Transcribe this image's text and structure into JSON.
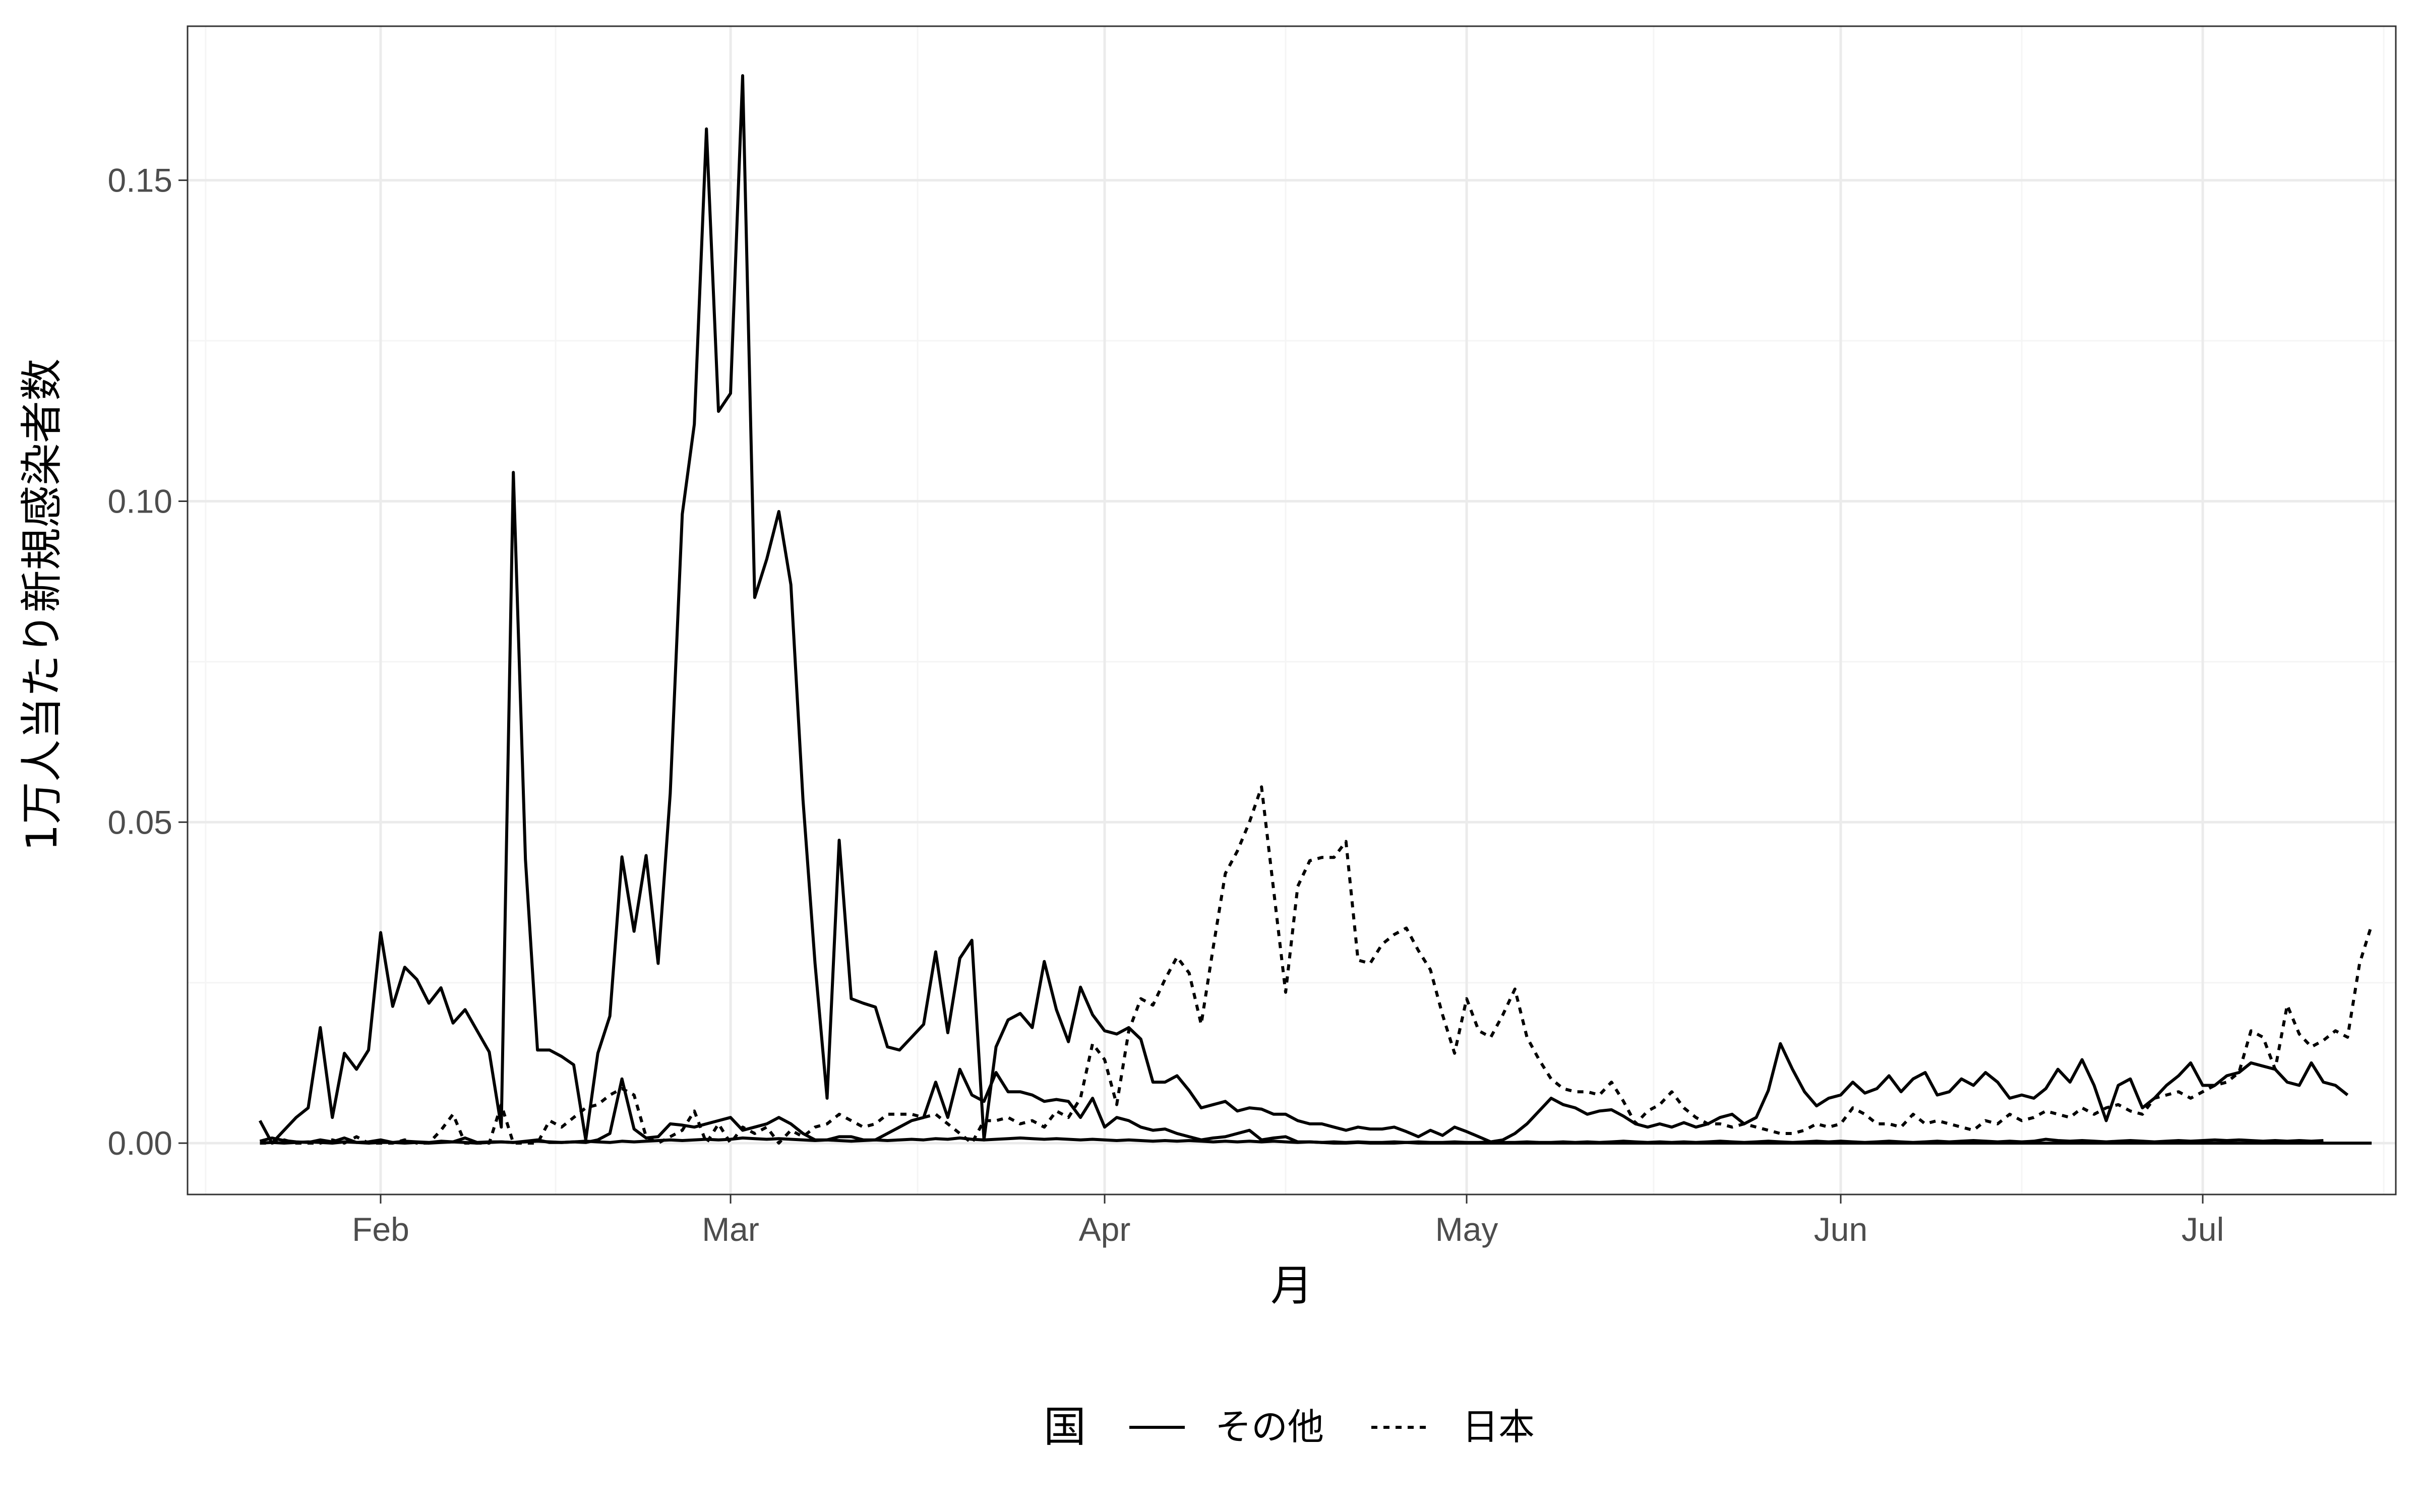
{
  "chart_data": {
    "type": "line",
    "title": "",
    "xlabel": "月",
    "ylabel": "1万人当たり新規感染者数",
    "x_ticks": [
      {
        "date": "2020-02-01",
        "label": "Feb"
      },
      {
        "date": "2020-03-01",
        "label": "Mar"
      },
      {
        "date": "2020-04-01",
        "label": "Apr"
      },
      {
        "date": "2020-05-01",
        "label": "May"
      },
      {
        "date": "2020-06-01",
        "label": "Jun"
      },
      {
        "date": "2020-07-01",
        "label": "Jul"
      }
    ],
    "xlim": [
      "2020-01-16",
      "2020-07-17"
    ],
    "y_ticks": [
      0.0,
      0.05,
      0.1,
      0.15
    ],
    "y_tick_labels": [
      "0.00",
      "0.05",
      "0.10",
      "0.15"
    ],
    "ylim": [
      -0.008,
      0.174
    ],
    "grid": true,
    "legend": {
      "title": "国",
      "position": "bottom",
      "entries": [
        {
          "label": "その他",
          "linetype": "solid"
        },
        {
          "label": "日本",
          "linetype": "dotted"
        }
      ]
    },
    "series_start": "2020-01-22",
    "series": [
      {
        "group": "その他",
        "linetype": "solid",
        "values": [
          0.0035,
          0.0,
          0.002,
          0.004,
          0.0055,
          0.018,
          0.004,
          0.014,
          0.0115,
          0.0145,
          0.0328,
          0.0213,
          0.0274,
          0.0255,
          0.0218,
          0.0242,
          0.0187,
          0.0208,
          0.0175,
          0.0142,
          0.0025,
          0.1045,
          0.0442,
          0.0145,
          0.0145,
          0.0135,
          0.0122,
          0.0005,
          0.014,
          0.0198,
          0.0446,
          0.033,
          0.0448,
          0.028,
          0.0545,
          0.098,
          0.112,
          0.158,
          0.114,
          0.1168,
          0.1663,
          0.085,
          0.091,
          0.0984,
          0.087,
          0.0535,
          0.028,
          0.007,
          0.0472,
          0.0225,
          0.0218,
          0.0212,
          0.015,
          0.0145,
          0.0165,
          0.0185,
          0.0298,
          0.0172,
          0.0288,
          0.0316,
          0.0005,
          0.015,
          0.0192,
          0.0202,
          0.018,
          0.0283,
          0.0208,
          0.0158,
          0.0243,
          0.02,
          0.0175,
          0.017,
          0.018,
          0.0162,
          0.0095,
          0.0095,
          0.0105,
          0.0082,
          0.0055,
          0.006,
          0.0065,
          0.005,
          0.0055,
          0.0053,
          0.0045,
          0.0045,
          0.0035,
          0.003,
          0.003,
          0.0025,
          0.002,
          0.0025,
          0.0022,
          0.0022,
          0.0025,
          0.0018,
          0.001,
          0.002,
          0.0012,
          0.0025,
          0.0018,
          0.001,
          0.0002,
          0.0005,
          0.0015,
          0.003,
          0.005,
          0.007,
          0.006,
          0.0055,
          0.0045,
          0.005,
          0.0052,
          0.0042,
          0.003,
          0.0025,
          0.003,
          0.0025,
          0.0032,
          0.0025,
          0.003,
          0.004,
          0.0045,
          0.003,
          0.004,
          0.0082,
          0.0155,
          0.0115,
          0.008,
          0.0058,
          0.007,
          0.0075,
          0.0095,
          0.0078,
          0.0085,
          0.0105,
          0.008,
          0.01,
          0.011,
          0.0075,
          0.008,
          0.01,
          0.009,
          0.011,
          0.0095,
          0.007,
          0.0075,
          0.007,
          0.0085,
          0.0115,
          0.0095,
          0.013,
          0.009,
          0.0035,
          0.009,
          0.01,
          0.0055,
          0.007,
          0.009,
          0.0105,
          0.0125,
          0.009,
          0.009,
          0.0105,
          0.011,
          0.0125,
          0.012,
          0.0115,
          0.0095,
          0.009,
          0.0125,
          0.0095,
          0.009,
          0.0075
        ]
      },
      {
        "group": "その他",
        "linetype": "solid",
        "values": [
          0.0003,
          0.0008,
          0.0004,
          0.0002,
          0.0001,
          0.0005,
          0.0002,
          0.0008,
          0.0001,
          0.0002,
          0.0005,
          0.0001,
          0.0003,
          0.0002,
          0.0001,
          0.0003,
          0.0002,
          0.0008,
          0.0001,
          0.0002,
          0.0002,
          0.0001,
          0.0003,
          0.0005,
          0.0001,
          0.0001,
          0.0002,
          0.0001,
          0.0005,
          0.0015,
          0.01,
          0.0022,
          0.0008,
          0.001,
          0.003,
          0.0028,
          0.0025,
          0.003,
          0.0035,
          0.004,
          0.002,
          0.0025,
          0.003,
          0.004,
          0.003,
          0.0015,
          0.0005,
          0.0005,
          0.001,
          0.001,
          0.0005,
          0.0005,
          0.0015,
          0.0025,
          0.0035,
          0.004,
          0.0095,
          0.004,
          0.0115,
          0.0075,
          0.0065,
          0.011,
          0.008,
          0.008,
          0.0075,
          0.0065,
          0.0068,
          0.0065,
          0.004,
          0.007,
          0.0025,
          0.004,
          0.0035,
          0.0025,
          0.002,
          0.0022,
          0.0015,
          0.001,
          0.0005,
          0.0008,
          0.001,
          0.0015,
          0.002,
          0.0005,
          0.0008,
          0.001,
          0.0002,
          0.0002,
          0.0001,
          0.0,
          0.0,
          0.0001,
          0.0,
          0.0,
          0.0,
          0.0001,
          0.0,
          0.0,
          0.0,
          0.0,
          0.0,
          0.0,
          0.0,
          0.0,
          0.0,
          0.0,
          0.0,
          0.0,
          0.0,
          0.0,
          0.0,
          0.0,
          0.0,
          0.0,
          0.0,
          0.0,
          0.0,
          0.0,
          0.0,
          0.0,
          0.0,
          0.0,
          0.0,
          0.0,
          0.0,
          0.0,
          0.0,
          0.0,
          0.0,
          0.0,
          0.0,
          0.0,
          0.0,
          0.0,
          0.0,
          0.0,
          0.0,
          0.0,
          0.0,
          0.0,
          0.0,
          0.0,
          0.0,
          0.0,
          0.0,
          0.0,
          0.0,
          0.0,
          0.0,
          0.0,
          0.0,
          0.0,
          0.0,
          0.0,
          0.0,
          0.0,
          0.0,
          0.0,
          0.0,
          0.0,
          0.0,
          0.0,
          0.0,
          0.0,
          0.0,
          0.0,
          0.0,
          0.0,
          0.0,
          0.0,
          0.0,
          0.0,
          0.0,
          0.0,
          0.0,
          0.0
        ]
      },
      {
        "group": "その他",
        "linetype": "solid",
        "values": [
          0.0,
          0.0001,
          0.0,
          0.0001,
          0.0002,
          0.0001,
          0.0,
          0.0002,
          0.0001,
          0.0,
          0.0001,
          0.0001,
          0.0,
          0.0001,
          0.0,
          0.0001,
          0.0002,
          0.0001,
          0.0,
          0.0001,
          0.0002,
          0.0001,
          0.0002,
          0.0003,
          0.0002,
          0.0001,
          0.0002,
          0.0003,
          0.0002,
          0.0001,
          0.0003,
          0.0002,
          0.0003,
          0.0004,
          0.0005,
          0.0004,
          0.0005,
          0.0006,
          0.0005,
          0.0006,
          0.0008,
          0.0007,
          0.0006,
          0.0007,
          0.0006,
          0.0005,
          0.0004,
          0.0005,
          0.0004,
          0.0003,
          0.0004,
          0.0005,
          0.0004,
          0.0005,
          0.0006,
          0.0005,
          0.0007,
          0.0006,
          0.0008,
          0.0006,
          0.0005,
          0.0006,
          0.0007,
          0.0008,
          0.0007,
          0.0006,
          0.0007,
          0.0006,
          0.0005,
          0.0006,
          0.0005,
          0.0004,
          0.0005,
          0.0004,
          0.0003,
          0.0004,
          0.0003,
          0.0004,
          0.0003,
          0.0002,
          0.0003,
          0.0002,
          0.0003,
          0.0002,
          0.0003,
          0.0002,
          0.0001,
          0.0002,
          0.0001,
          0.0002,
          0.0001,
          0.0002,
          0.0001,
          0.0001,
          0.0002,
          0.0001,
          0.0002,
          0.0001,
          0.0001,
          0.0002,
          0.0001,
          0.0001,
          0.0002,
          0.0001,
          0.0001,
          0.0002,
          0.0001,
          0.0001,
          0.0002,
          0.0001,
          0.0002,
          0.0001,
          0.0002,
          0.0003,
          0.0002,
          0.0001,
          0.0002,
          0.0001,
          0.0002,
          0.0001,
          0.0002,
          0.0003,
          0.0002,
          0.0001,
          0.0002,
          0.0003,
          0.0002,
          0.0001,
          0.0002,
          0.0003,
          0.0002,
          0.0003,
          0.0002,
          0.0001,
          0.0002,
          0.0003,
          0.0002,
          0.0001,
          0.0002,
          0.0003,
          0.0002,
          0.0003,
          0.0004,
          0.0003,
          0.0002,
          0.0003,
          0.0002,
          0.0003,
          0.0006,
          0.0004,
          0.0003,
          0.0004,
          0.0003,
          0.0002,
          0.0003,
          0.0004,
          0.0003,
          0.0002,
          0.0003,
          0.0004,
          0.0003,
          0.0004,
          0.0005,
          0.0004,
          0.0005,
          0.0004,
          0.0003,
          0.0004,
          0.0003,
          0.0004,
          0.0003,
          0.0004
        ]
      },
      {
        "group": "日本",
        "linetype": "dotted",
        "values": [
          0.0,
          0.0,
          0.0005,
          0.0,
          0.0,
          0.0,
          0.0005,
          0.0,
          0.001,
          0.0,
          0.0,
          0.0,
          0.0005,
          0.0,
          0.0,
          0.002,
          0.0045,
          0.0,
          0.0,
          0.0,
          0.006,
          0.0,
          0.0,
          0.0,
          0.0035,
          0.0025,
          0.004,
          0.0055,
          0.006,
          0.0075,
          0.0085,
          0.0075,
          0.001,
          0.0,
          0.001,
          0.002,
          0.005,
          0.0,
          0.003,
          0.0,
          0.0025,
          0.0015,
          0.0025,
          0.0,
          0.002,
          0.001,
          0.0025,
          0.003,
          0.0045,
          0.0035,
          0.0025,
          0.003,
          0.0045,
          0.0045,
          0.0045,
          0.004,
          0.0045,
          0.003,
          0.0015,
          0.0,
          0.0035,
          0.0035,
          0.004,
          0.003,
          0.0035,
          0.0025,
          0.005,
          0.004,
          0.007,
          0.0155,
          0.013,
          0.006,
          0.0175,
          0.0225,
          0.0215,
          0.0255,
          0.029,
          0.0265,
          0.0185,
          0.0305,
          0.042,
          0.0455,
          0.05,
          0.0555,
          0.0395,
          0.0235,
          0.04,
          0.044,
          0.0445,
          0.0445,
          0.047,
          0.0285,
          0.028,
          0.031,
          0.0325,
          0.0335,
          0.03,
          0.027,
          0.02,
          0.014,
          0.0225,
          0.0175,
          0.0165,
          0.02,
          0.024,
          0.0165,
          0.013,
          0.01,
          0.0085,
          0.008,
          0.008,
          0.0075,
          0.0095,
          0.0065,
          0.003,
          0.005,
          0.006,
          0.008,
          0.0055,
          0.004,
          0.003,
          0.003,
          0.0025,
          0.003,
          0.0025,
          0.002,
          0.0015,
          0.0015,
          0.002,
          0.003,
          0.0025,
          0.003,
          0.0055,
          0.0045,
          0.003,
          0.003,
          0.0025,
          0.0045,
          0.003,
          0.0035,
          0.003,
          0.0025,
          0.002,
          0.0035,
          0.003,
          0.0045,
          0.0035,
          0.004,
          0.005,
          0.0045,
          0.004,
          0.0055,
          0.0045,
          0.0055,
          0.006,
          0.005,
          0.0045,
          0.007,
          0.0075,
          0.008,
          0.007,
          0.008,
          0.009,
          0.0095,
          0.011,
          0.0175,
          0.0165,
          0.0115,
          0.0215,
          0.017,
          0.015,
          0.016,
          0.0175,
          0.0165,
          0.028,
          0.034
        ]
      }
    ]
  },
  "colors": {
    "panel_border": "#333333",
    "grid_major": "#ebebeb",
    "grid_minor": "#f5f5f5",
    "line": "#000000",
    "tick_text": "#4d4d4d"
  }
}
